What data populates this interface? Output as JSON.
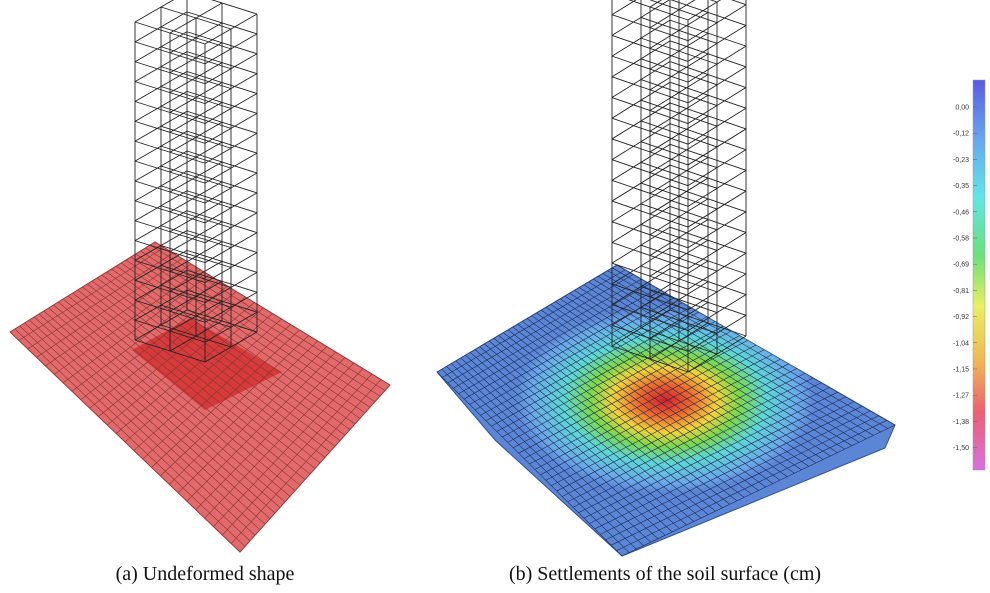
{
  "figure": {
    "captions": [
      "(a) Undeformed shape",
      "(b) Settlements of the soil surface (cm)"
    ],
    "legend": {
      "labels": [
        "0,00",
        "-0,12",
        "-0,23",
        "-0,35",
        "-0,46",
        "-0,58",
        "-0,69",
        "-0,81",
        "-0,92",
        "-1,04",
        "-1,15",
        "-1,27",
        "-1,38",
        "-1,50"
      ]
    }
  }
}
